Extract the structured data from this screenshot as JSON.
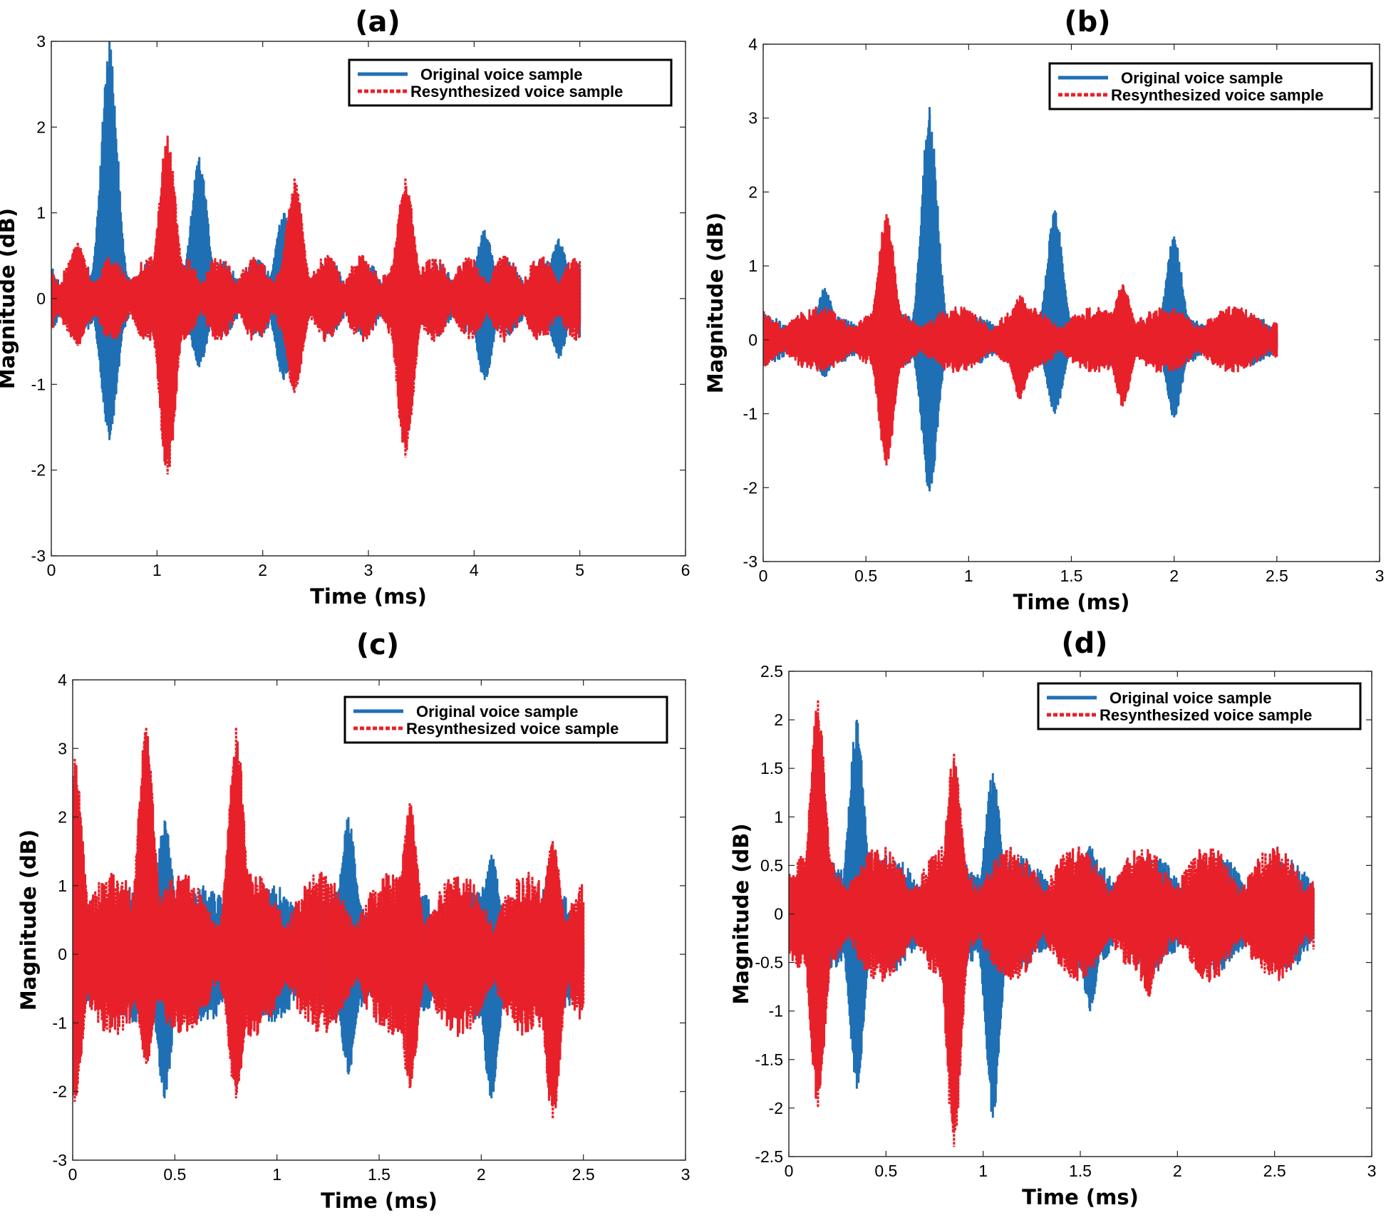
{
  "chart_data": [
    {
      "panel": "(a)",
      "type": "line",
      "title": "(a)",
      "xlabel": "Time (ms)",
      "ylabel": "Magnitude (dB)",
      "xlim": [
        0,
        6
      ],
      "ylim": [
        -3,
        3
      ],
      "xticks": [
        "0",
        "1",
        "2",
        "3",
        "4",
        "5",
        "6"
      ],
      "yticks": [
        "-3",
        "-2",
        "-1",
        "0",
        "1",
        "2",
        "3"
      ],
      "legend": [
        "Original voice sample",
        "Resynthesized voice sample"
      ],
      "legend_position": "top-right",
      "series": [
        {
          "name": "Original voice sample",
          "color": "#1f6fb4",
          "style": "solid",
          "x_range": [
            0,
            5.0
          ],
          "base_amplitude": 0.45,
          "peaks": [
            {
              "x": 0.55,
              "max": 3.0,
              "min": -1.65
            },
            {
              "x": 1.4,
              "max": 1.65,
              "min": -0.8
            },
            {
              "x": 2.2,
              "max": 1.0,
              "min": -0.95
            },
            {
              "x": 4.1,
              "max": 0.8,
              "min": -0.95
            },
            {
              "x": 4.8,
              "max": 0.7,
              "min": -0.7
            }
          ]
        },
        {
          "name": "Resynthesized voice sample",
          "color": "#e8202a",
          "style": "dotted",
          "x_range": [
            0,
            5.0
          ],
          "base_amplitude": 0.5,
          "peaks": [
            {
              "x": 1.1,
              "max": 1.9,
              "min": -2.05
            },
            {
              "x": 2.3,
              "max": 1.4,
              "min": -1.1
            },
            {
              "x": 3.35,
              "max": 1.4,
              "min": -1.85
            },
            {
              "x": 0.25,
              "max": 0.65,
              "min": -0.55
            }
          ]
        }
      ]
    },
    {
      "panel": "(b)",
      "type": "line",
      "title": "(b)",
      "xlabel": "Time (ms)",
      "ylabel": "Magnitude (dB)",
      "xlim": [
        0,
        3
      ],
      "ylim": [
        -3,
        4
      ],
      "xticks": [
        "0",
        "0.5",
        "1",
        "1.5",
        "2",
        "2.5",
        "3"
      ],
      "yticks": [
        "-3",
        "-2",
        "-1",
        "0",
        "1",
        "2",
        "3",
        "4"
      ],
      "legend": [
        "Original voice sample",
        "Resynthesized voice sample"
      ],
      "legend_position": "top-right",
      "series": [
        {
          "name": "Original voice sample",
          "color": "#1f6fb4",
          "style": "solid",
          "x_range": [
            0,
            2.5
          ],
          "base_amplitude": 0.35,
          "peaks": [
            {
              "x": 0.81,
              "max": 3.15,
              "min": -2.05
            },
            {
              "x": 1.42,
              "max": 1.75,
              "min": -1.0
            },
            {
              "x": 2.0,
              "max": 1.4,
              "min": -1.05
            },
            {
              "x": 0.3,
              "max": 0.7,
              "min": -0.5
            }
          ]
        },
        {
          "name": "Resynthesized voice sample",
          "color": "#e8202a",
          "style": "solid",
          "x_range": [
            0,
            2.5
          ],
          "base_amplitude": 0.45,
          "peaks": [
            {
              "x": 0.6,
              "max": 1.7,
              "min": -1.7
            },
            {
              "x": 1.75,
              "max": 0.75,
              "min": -0.9
            },
            {
              "x": 1.25,
              "max": 0.6,
              "min": -0.8
            }
          ]
        }
      ]
    },
    {
      "panel": "(c)",
      "type": "line",
      "title": "(c)",
      "xlabel": "Time (ms)",
      "ylabel": "Magnitude (dB)",
      "xlim": [
        0,
        3
      ],
      "ylim": [
        -3,
        4
      ],
      "xticks": [
        "0",
        "0.5",
        "1",
        "1.5",
        "2",
        "2.5",
        "3"
      ],
      "yticks": [
        "-3",
        "-2",
        "-1",
        "0",
        "1",
        "2",
        "3",
        "4"
      ],
      "legend": [
        "Original voice sample",
        "Resynthesized voice sample"
      ],
      "legend_position": "top-right",
      "series": [
        {
          "name": "Original voice sample",
          "color": "#1f6fb4",
          "style": "solid",
          "x_range": [
            0,
            2.5
          ],
          "base_amplitude": 1.0,
          "peaks": [
            {
              "x": 0.45,
              "max": 1.95,
              "min": -2.1
            },
            {
              "x": 1.35,
              "max": 2.0,
              "min": -1.75
            },
            {
              "x": 2.05,
              "max": 1.45,
              "min": -2.1
            }
          ]
        },
        {
          "name": "Resynthesized voice sample",
          "color": "#e8202a",
          "style": "dotted",
          "x_range": [
            0,
            2.5
          ],
          "base_amplitude": 1.2,
          "peaks": [
            {
              "x": 0.01,
              "max": 2.85,
              "min": -2.15
            },
            {
              "x": 0.36,
              "max": 3.3,
              "min": -1.6
            },
            {
              "x": 0.8,
              "max": 3.3,
              "min": -2.1
            },
            {
              "x": 1.65,
              "max": 2.2,
              "min": -1.95
            },
            {
              "x": 2.35,
              "max": 1.65,
              "min": -2.4
            }
          ]
        }
      ]
    },
    {
      "panel": "(d)",
      "type": "line",
      "title": "(d)",
      "xlabel": "Time (ms)",
      "ylabel": "Magnitude (dB)",
      "xlim": [
        0,
        3
      ],
      "ylim": [
        -2.5,
        2.5
      ],
      "xticks": [
        "0",
        "0.5",
        "1",
        "1.5",
        "2",
        "2.5",
        "3"
      ],
      "yticks": [
        "-2.5",
        "-2",
        "-1.5",
        "-1",
        "-0.5",
        "0",
        "0.5",
        "1",
        "1.5",
        "2",
        "2.5"
      ],
      "legend": [
        "Original voice sample",
        "Resynthesized voice sample"
      ],
      "legend_position": "top-right",
      "series": [
        {
          "name": "Original voice sample",
          "color": "#1f6fb4",
          "style": "solid",
          "x_range": [
            0,
            2.7
          ],
          "base_amplitude": 0.6,
          "peaks": [
            {
              "x": 0.35,
              "max": 2.0,
              "min": -1.8
            },
            {
              "x": 1.05,
              "max": 1.45,
              "min": -2.1
            },
            {
              "x": 1.55,
              "max": 0.7,
              "min": -1.0
            }
          ]
        },
        {
          "name": "Resynthesized voice sample",
          "color": "#e8202a",
          "style": "dotted",
          "x_range": [
            0,
            2.7
          ],
          "base_amplitude": 0.7,
          "peaks": [
            {
              "x": 0.15,
              "max": 2.2,
              "min": -2.0
            },
            {
              "x": 0.85,
              "max": 1.65,
              "min": -2.4
            },
            {
              "x": 1.85,
              "max": 0.6,
              "min": -0.85
            }
          ]
        }
      ]
    }
  ]
}
